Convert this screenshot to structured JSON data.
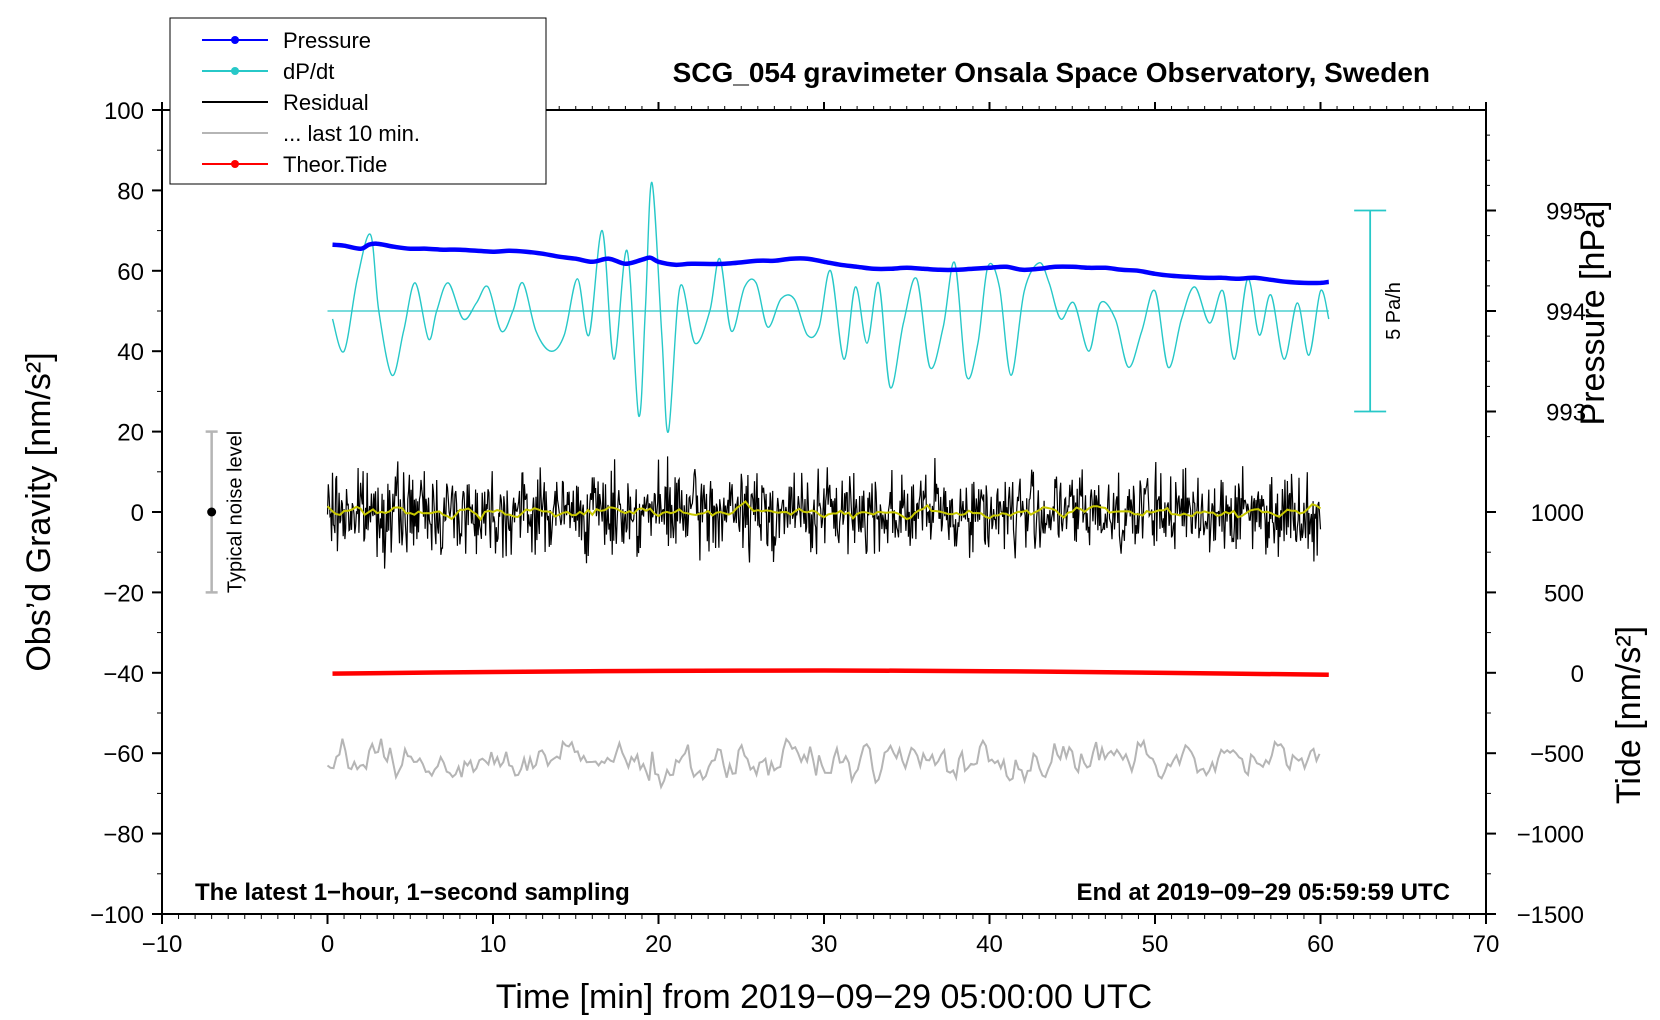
{
  "chart_data": {
    "type": "line",
    "title": "SCG_054 gravimeter Onsala Space Observatory, Sweden",
    "xlabel": "Time [min] from 2019−09−29 05:00:00 UTC",
    "ylabel_left": "Obs’d Gravity [nm/s²]",
    "ylabel_right_top": "Pressure [hPa]",
    "ylabel_right_bottom": "Tide [nm/s²]",
    "xlim": [
      -10,
      70
    ],
    "ylim": [
      -100,
      100
    ],
    "x_ticks": [
      -10,
      0,
      10,
      20,
      30,
      40,
      50,
      60,
      70
    ],
    "x_tick_labels": [
      "−10",
      "0",
      "10",
      "20",
      "30",
      "40",
      "50",
      "60",
      "70"
    ],
    "y_ticks": [
      -100,
      -80,
      -60,
      -40,
      -20,
      0,
      20,
      40,
      60,
      80,
      100
    ],
    "y_tick_labels": [
      "−100",
      "−80",
      "−60",
      "−40",
      "−20",
      "0",
      "20",
      "40",
      "60",
      "80",
      "100"
    ],
    "pressure_axis": {
      "ticks": [
        993,
        994,
        995
      ],
      "tick_labels": [
        "993",
        "994",
        "995"
      ],
      "value_at_left_y": [
        [
          993,
          25
        ],
        [
          995,
          75
        ]
      ]
    },
    "tide_axis": {
      "ticks": [
        -1500,
        -1000,
        -500,
        0,
        500,
        1000
      ],
      "tick_labels": [
        "−1500",
        "−1000",
        "−500",
        "0",
        "500",
        "1000"
      ],
      "value_at_left_y": [
        [
          -1500,
          -100
        ],
        [
          1000,
          0
        ]
      ]
    },
    "annotations": {
      "bottom_left": "The latest 1−hour, 1−second sampling",
      "bottom_right": "End at 2019−09−29 05:59:59 UTC",
      "noise_label": "Typical noise level",
      "noise_center": 0,
      "noise_halfwidth": 20,
      "noise_x": -7,
      "scale_bar_label": "5 Pa/h",
      "scale_bar_x": 63,
      "scale_bar_range": [
        25,
        75
      ],
      "dpdt_baseline": 50
    },
    "legend": [
      {
        "label": "Pressure",
        "color": "#0000ff",
        "marker": true
      },
      {
        "label": "dP/dt",
        "color": "#27c8c8",
        "marker": true
      },
      {
        "label": "Residual",
        "color": "#000000",
        "marker": false
      },
      {
        "label": "... last 10 min.",
        "color": "#b5b5b5",
        "marker": false
      },
      {
        "label": "Theor.Tide",
        "color": "#ff0000",
        "marker": true
      }
    ],
    "series": [
      {
        "name": "Pressure",
        "color": "#0000ff",
        "unit": "hPa",
        "x": [
          0.3,
          1,
          2,
          2.5,
          3,
          4,
          5,
          6,
          7,
          8,
          10,
          11,
          12,
          13,
          14,
          15,
          16,
          17,
          18,
          19,
          19.5,
          20,
          21,
          22,
          24,
          26,
          27,
          28,
          29,
          30,
          31,
          32,
          33,
          34,
          35,
          36,
          37,
          38,
          39,
          40,
          41,
          42,
          43,
          44,
          45,
          46,
          47,
          48,
          49,
          50,
          51,
          52,
          53,
          54,
          55,
          56,
          57,
          58,
          59,
          60,
          60.5
        ],
        "values": [
          994.66,
          994.65,
          994.62,
          994.66,
          994.67,
          994.64,
          994.62,
          994.62,
          994.61,
          994.61,
          994.59,
          994.6,
          994.59,
          994.57,
          994.54,
          994.52,
          994.49,
          994.52,
          994.47,
          994.51,
          994.53,
          994.49,
          994.46,
          994.47,
          994.47,
          994.5,
          994.5,
          994.52,
          994.52,
          994.49,
          994.46,
          994.44,
          994.42,
          994.42,
          994.43,
          994.42,
          994.41,
          994.41,
          994.42,
          994.43,
          994.44,
          994.41,
          994.42,
          994.44,
          994.44,
          994.43,
          994.43,
          994.41,
          994.4,
          994.37,
          994.35,
          994.34,
          994.33,
          994.33,
          994.32,
          994.33,
          994.31,
          994.29,
          994.28,
          994.28,
          994.29
        ]
      },
      {
        "name": "dP/dt",
        "color": "#27c8c8",
        "unit": "nm/s² plot units",
        "x": [
          0.3,
          1.0,
          1.8,
          2.6,
          3.1,
          3.9,
          4.6,
          5.3,
          6.1,
          6.6,
          7.3,
          8.2,
          9.0,
          9.7,
          10.5,
          11.2,
          11.8,
          12.6,
          13.5,
          14.3,
          15.1,
          15.8,
          16.6,
          17.3,
          18.1,
          18.8,
          19.2,
          19.6,
          20.2,
          20.6,
          21.3,
          22.2,
          23.1,
          23.7,
          24.4,
          25.2,
          25.9,
          26.6,
          27.4,
          28.2,
          29.0,
          29.7,
          30.4,
          31.2,
          31.9,
          32.6,
          33.3,
          34.0,
          34.8,
          35.6,
          36.4,
          37.2,
          37.9,
          38.6,
          39.3,
          39.9,
          40.6,
          41.3,
          42.1,
          43.0,
          43.6,
          44.3,
          45.1,
          46.0,
          46.7,
          47.6,
          48.4,
          49.2,
          50.0,
          50.8,
          51.6,
          52.4,
          53.3,
          54.1,
          54.8,
          55.6,
          56.3,
          57.0,
          57.8,
          58.6,
          59.3,
          60.0,
          60.5
        ],
        "values": [
          48,
          40,
          58,
          69,
          50,
          34,
          45,
          57,
          43,
          50,
          57,
          48,
          52,
          56,
          45,
          50,
          57,
          45,
          40,
          44,
          58,
          44,
          70,
          38,
          65,
          24,
          50,
          82,
          44,
          20,
          56,
          42,
          50,
          63,
          45,
          56,
          57,
          46,
          53,
          53,
          44,
          46,
          60,
          38,
          56,
          42,
          57,
          31,
          47,
          58,
          36,
          46,
          62,
          34,
          42,
          61,
          56,
          34,
          55,
          62,
          57,
          48,
          52,
          40,
          52,
          48,
          36,
          45,
          55,
          36,
          48,
          56,
          47,
          55,
          38,
          58,
          44,
          54,
          38,
          52,
          39,
          55,
          48
        ]
      },
      {
        "name": "Residual",
        "color": "#000000",
        "unit": "nm/s²",
        "amplitude": 5,
        "x_start": 0,
        "x_end": 60,
        "mean": 0
      },
      {
        "name": "Residual smoothed",
        "color": "#c8c800",
        "unit": "nm/s²",
        "amplitude": 1.5,
        "x_start": 0,
        "x_end": 60,
        "mean": 0
      },
      {
        "name": "... last 10 min.",
        "color": "#b5b5b5",
        "unit": "nm/s² plot units",
        "amplitude": 5,
        "x_start": 0,
        "x_end": 60,
        "mean": -62
      },
      {
        "name": "Theor.Tide",
        "color": "#ff0000",
        "unit": "nm/s²",
        "x": [
          0.3,
          10,
          20,
          30,
          40,
          50,
          60.5
        ],
        "values": [
          -5,
          5,
          12,
          14,
          10,
          0,
          -12
        ]
      }
    ]
  }
}
